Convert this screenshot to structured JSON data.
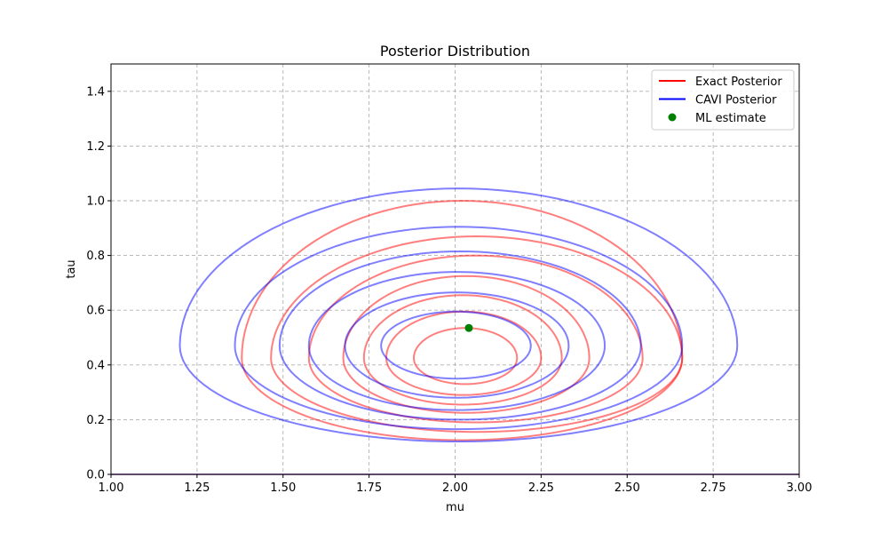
{
  "chart_data": {
    "type": "contour",
    "title": "Posterior Distribution",
    "xlabel": "mu",
    "ylabel": "tau",
    "xlim": [
      1.0,
      3.0
    ],
    "ylim": [
      0.0,
      1.5
    ],
    "xticks": [
      "1.00",
      "1.25",
      "1.50",
      "1.75",
      "2.00",
      "2.25",
      "2.50",
      "2.75",
      "3.00"
    ],
    "yticks": [
      "0.0",
      "0.2",
      "0.4",
      "0.6",
      "0.8",
      "1.0",
      "1.2",
      "1.4"
    ],
    "grid": true,
    "legend_position": "top-right",
    "legend": [
      {
        "label": "Exact Posterior",
        "kind": "line",
        "color": "#ff0000"
      },
      {
        "label": "CAVI Posterior",
        "kind": "line",
        "color": "#0000ff"
      },
      {
        "label": "ML estimate",
        "kind": "point",
        "color": "#008000"
      }
    ],
    "series": [
      {
        "name": "Exact Posterior",
        "color": "#ff0000",
        "contours": [
          {
            "mu_min": 1.88,
            "mu_max": 2.18,
            "tau_min": 0.33,
            "tau_max": 0.535,
            "peak_tau": 0.425
          },
          {
            "mu_min": 1.8,
            "mu_max": 2.25,
            "tau_min": 0.29,
            "tau_max": 0.595,
            "peak_tau": 0.425
          },
          {
            "mu_min": 1.735,
            "mu_max": 2.31,
            "tau_min": 0.255,
            "tau_max": 0.655,
            "peak_tau": 0.425
          },
          {
            "mu_min": 1.675,
            "mu_max": 2.39,
            "tau_min": 0.225,
            "tau_max": 0.725,
            "peak_tau": 0.425
          },
          {
            "mu_min": 1.575,
            "mu_max": 2.545,
            "tau_min": 0.19,
            "tau_max": 0.8,
            "peak_tau": 0.425
          },
          {
            "mu_min": 1.465,
            "mu_max": 2.66,
            "tau_min": 0.155,
            "tau_max": 0.87,
            "peak_tau": 0.425
          },
          {
            "mu_min": 1.38,
            "mu_max": 2.66,
            "tau_min": 0.125,
            "tau_max": 1.0,
            "peak_tau": 0.425
          }
        ]
      },
      {
        "name": "CAVI Posterior",
        "color": "#0000ff",
        "contours": [
          {
            "mu_min": 1.785,
            "mu_max": 2.22,
            "tau_min": 0.35,
            "tau_max": 0.595,
            "peak_tau": 0.47
          },
          {
            "mu_min": 1.68,
            "mu_max": 2.33,
            "tau_min": 0.28,
            "tau_max": 0.665,
            "peak_tau": 0.47
          },
          {
            "mu_min": 1.575,
            "mu_max": 2.435,
            "tau_min": 0.235,
            "tau_max": 0.74,
            "peak_tau": 0.47
          },
          {
            "mu_min": 1.49,
            "mu_max": 2.54,
            "tau_min": 0.2,
            "tau_max": 0.815,
            "peak_tau": 0.47
          },
          {
            "mu_min": 1.36,
            "mu_max": 2.66,
            "tau_min": 0.165,
            "tau_max": 0.905,
            "peak_tau": 0.47
          },
          {
            "mu_min": 1.2,
            "mu_max": 2.82,
            "tau_min": 0.12,
            "tau_max": 1.045,
            "peak_tau": 0.47
          }
        ]
      }
    ],
    "points": [
      {
        "name": "ML estimate",
        "x": 2.04,
        "y": 0.535,
        "color": "#008000"
      }
    ]
  }
}
